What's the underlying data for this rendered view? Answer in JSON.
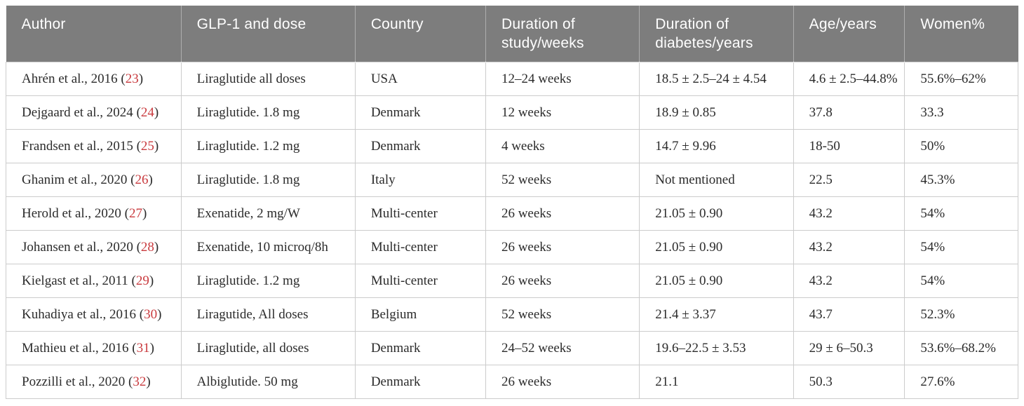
{
  "table": {
    "columns": [
      {
        "label": "Author"
      },
      {
        "label": "GLP-1 and dose"
      },
      {
        "label": "Country"
      },
      {
        "label": "Duration of study/weeks"
      },
      {
        "label": "Duration of diabetes/years"
      },
      {
        "label": "Age/years"
      },
      {
        "label": "Women%"
      }
    ],
    "rows": [
      {
        "author_pre": "Ahrén et al., 2016 (",
        "ref": "23",
        "author_post": ")",
        "glp": "Liraglutide all doses",
        "country": "USA",
        "duration_study": "12–24 weeks",
        "duration_diabetes": "18.5 ± 2.5–24 ± 4.54",
        "age": "4.6 ± 2.5–44.8%",
        "women": "55.6%–62%"
      },
      {
        "author_pre": "Dejgaard et al., 2024 (",
        "ref": "24",
        "author_post": ")",
        "glp": "Liraglutide. 1.8 mg",
        "country": "Denmark",
        "duration_study": "12 weeks",
        "duration_diabetes": "18.9 ± 0.85",
        "age": "37.8",
        "women": "33.3"
      },
      {
        "author_pre": "Frandsen et al., 2015 (",
        "ref": "25",
        "author_post": ")",
        "glp": "Liraglutide. 1.2 mg",
        "country": "Denmark",
        "duration_study": "4 weeks",
        "duration_diabetes": "14.7 ± 9.96",
        "age": "18-50",
        "women": "50%"
      },
      {
        "author_pre": "Ghanim et al., 2020 (",
        "ref": "26",
        "author_post": ")",
        "glp": "Liraglutide. 1.8 mg",
        "country": "Italy",
        "duration_study": "52 weeks",
        "duration_diabetes": "Not mentioned",
        "age": "22.5",
        "women": "45.3%"
      },
      {
        "author_pre": "Herold et al., 2020 (",
        "ref": "27",
        "author_post": ")",
        "glp": "Exenatide, 2 mg/W",
        "country": "Multi-center",
        "duration_study": "26 weeks",
        "duration_diabetes": "21.05 ± 0.90",
        "age": "43.2",
        "women": "54%"
      },
      {
        "author_pre": "Johansen et al., 2020 (",
        "ref": "28",
        "author_post": ")",
        "glp": "Exenatide, 10 microq/8h",
        "country": "Multi-center",
        "duration_study": "26 weeks",
        "duration_diabetes": "21.05 ± 0.90",
        "age": "43.2",
        "women": "54%"
      },
      {
        "author_pre": "Kielgast et al., 2011 (",
        "ref": "29",
        "author_post": ")",
        "glp": "Liraglutide. 1.2 mg",
        "country": "Multi-center",
        "duration_study": "26 weeks",
        "duration_diabetes": "21.05 ± 0.90",
        "age": "43.2",
        "women": "54%"
      },
      {
        "author_pre": "Kuhadiya et al., 2016 (",
        "ref": "30",
        "author_post": ")",
        "glp": "Liragutide, All doses",
        "country": "Belgium",
        "duration_study": "52 weeks",
        "duration_diabetes": "21.4 ± 3.37",
        "age": "43.7",
        "women": "52.3%"
      },
      {
        "author_pre": "Mathieu et al., 2016 (",
        "ref": "31",
        "author_post": ")",
        "glp": "Liraglutide, all doses",
        "country": "Denmark",
        "duration_study": "24–52 weeks",
        "duration_diabetes": "19.6–22.5 ± 3.53",
        "age": "29 ± 6–50.3",
        "women": "53.6%–68.2%"
      },
      {
        "author_pre": "Pozzilli et al., 2020 (",
        "ref": "32",
        "author_post": ")",
        "glp": "Albiglutide. 50 mg",
        "country": "Denmark",
        "duration_study": "26 weeks",
        "duration_diabetes": "21.1",
        "age": "50.3",
        "women": "27.6%"
      }
    ]
  },
  "colors": {
    "header_bg": "#7d7d7d",
    "header_text": "#ffffff",
    "body_text": "#2b2b2b",
    "citation_red": "#c93a3e",
    "grid_line": "#cccccc"
  }
}
